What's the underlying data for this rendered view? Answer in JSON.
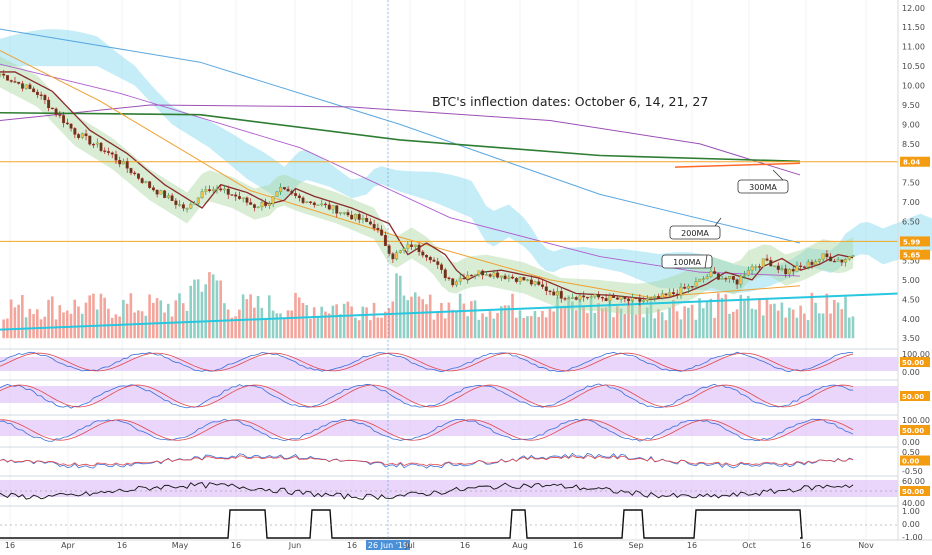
{
  "chart_data": {
    "type": "candlestick",
    "title": "BTC's inflection dates: October 6, 14, 21, 27",
    "price_axis": {
      "ticks": [
        "12.00",
        "11.50",
        "11.00",
        "10.50",
        "10.00",
        "9.50",
        "9.00",
        "8.50",
        "8.00",
        "7.50",
        "7.00",
        "6.50",
        "6.00",
        "5.50",
        "5.00",
        "4.50",
        "4.00",
        "3.50"
      ],
      "ylim": [
        3.3,
        12.2
      ]
    },
    "x_axis": {
      "labels": [
        "16",
        "Apr",
        "16",
        "May",
        "16",
        "Jun",
        "16",
        "26 Jun '19",
        "Jul",
        "16",
        "Aug",
        "16",
        "Sep",
        "16",
        "Oct",
        "16",
        "Nov"
      ],
      "highlight": "26 Jun '19",
      "xlim_days": [
        0,
        240
      ]
    },
    "price_tags": [
      {
        "text": "8.04",
        "value": 8.04,
        "color": "#f39c12"
      },
      {
        "text": "5.99",
        "value": 5.99,
        "color": "#f39c12"
      },
      {
        "text": "5.65",
        "value": 5.65,
        "color": "#f39c12"
      }
    ],
    "horizontal_levels": [
      8.04,
      5.99
    ],
    "callouts": [
      "300MA",
      "200MA",
      "100MA"
    ],
    "candle_anchors": {
      "day": [
        0,
        10,
        20,
        30,
        40,
        50,
        55,
        62,
        68,
        72,
        75,
        80,
        90,
        100,
        105,
        110,
        115,
        118,
        121,
        125,
        130,
        140,
        150,
        160,
        170,
        175,
        180,
        185,
        190,
        197,
        200,
        205,
        210,
        215,
        220,
        225,
        228
      ],
      "close": [
        10.3,
        9.8,
        8.8,
        8.2,
        7.4,
        6.8,
        7.4,
        7.2,
        6.9,
        7.0,
        7.3,
        7.1,
        6.8,
        6.4,
        5.6,
        5.9,
        5.6,
        5.2,
        4.95,
        5.15,
        5.2,
        5.0,
        4.6,
        4.55,
        4.45,
        4.5,
        4.65,
        4.85,
        5.15,
        4.95,
        5.3,
        5.5,
        5.2,
        5.35,
        5.6,
        5.5,
        5.65
      ]
    },
    "oscillator_panels": [
      {
        "ticks": [
          "100.00",
          "50.00",
          "0.00"
        ],
        "tag": "50.00"
      },
      {
        "ticks": [
          "50.00"
        ],
        "tag": "50.00"
      },
      {
        "ticks": [
          "100.00",
          "50.00",
          "0.00"
        ],
        "tag": "50.00"
      },
      {
        "ticks": [
          "0.50",
          "0.00",
          "-0.50"
        ],
        "tag": "0.00"
      },
      {
        "ticks": [
          "60.00",
          "50.00",
          "40.00"
        ],
        "tag": "50.00"
      },
      {
        "ticks": [
          "1.00",
          "0.00",
          "-1.00"
        ],
        "tag": null
      }
    ]
  }
}
